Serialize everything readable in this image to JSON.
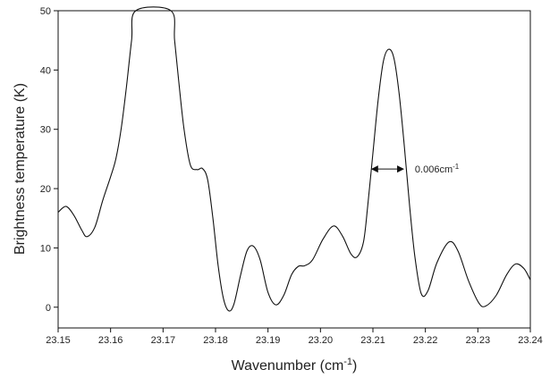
{
  "chart_data": {
    "type": "line",
    "xlabel": "Wavenumber (cm",
    "xlabel_sup": "-1",
    "xlabel_end": ")",
    "ylabel": "Brightness temperature (K)",
    "xlim": [
      23.15,
      23.24
    ],
    "ylim": [
      -3.5,
      50
    ],
    "x_ticks": [
      "23.15",
      "23.16",
      "23.17",
      "23.18",
      "23.19",
      "23.20",
      "23.21",
      "23.22",
      "23.23",
      "23.24"
    ],
    "y_ticks": [
      "0",
      "10",
      "20",
      "30",
      "40",
      "50"
    ],
    "grid": false,
    "series": [
      {
        "color": "#111111",
        "points": [
          [
            23.15,
            16.0
          ],
          [
            23.1515,
            17.0
          ],
          [
            23.153,
            15.5
          ],
          [
            23.1545,
            13.0
          ],
          [
            23.1555,
            11.9
          ],
          [
            23.157,
            13.5
          ],
          [
            23.1585,
            18.0
          ],
          [
            23.16,
            22.0
          ],
          [
            23.161,
            25.0
          ],
          [
            23.162,
            30.0
          ],
          [
            23.163,
            37.0
          ],
          [
            23.164,
            45.0
          ],
          [
            23.1648,
            50.0
          ],
          [
            23.1715,
            50.0
          ],
          [
            23.1722,
            45.0
          ],
          [
            23.173,
            38.0
          ],
          [
            23.174,
            30.0
          ],
          [
            23.1752,
            24.0
          ],
          [
            23.1765,
            23.2
          ],
          [
            23.1775,
            23.4
          ],
          [
            23.1785,
            21.5
          ],
          [
            23.1795,
            15.0
          ],
          [
            23.1805,
            7.0
          ],
          [
            23.1815,
            1.5
          ],
          [
            23.1825,
            -0.6
          ],
          [
            23.1835,
            0.5
          ],
          [
            23.1848,
            5.5
          ],
          [
            23.186,
            9.5
          ],
          [
            23.1872,
            10.3
          ],
          [
            23.1885,
            8.0
          ],
          [
            23.19,
            2.5
          ],
          [
            23.1915,
            0.4
          ],
          [
            23.193,
            2.0
          ],
          [
            23.1945,
            5.5
          ],
          [
            23.1958,
            6.9
          ],
          [
            23.197,
            7.0
          ],
          [
            23.1985,
            8.0
          ],
          [
            23.2005,
            11.5
          ],
          [
            23.2025,
            13.7
          ],
          [
            23.2042,
            12.0
          ],
          [
            23.2058,
            9.0
          ],
          [
            23.207,
            8.5
          ],
          [
            23.2082,
            11.0
          ],
          [
            23.209,
            17.0
          ],
          [
            23.21,
            26.0
          ],
          [
            23.211,
            35.0
          ],
          [
            23.212,
            41.5
          ],
          [
            23.213,
            43.5
          ],
          [
            23.214,
            42.0
          ],
          [
            23.215,
            36.0
          ],
          [
            23.216,
            27.0
          ],
          [
            23.217,
            17.0
          ],
          [
            23.218,
            8.5
          ],
          [
            23.2192,
            2.3
          ],
          [
            23.2205,
            2.8
          ],
          [
            23.2222,
            7.5
          ],
          [
            23.2245,
            11.0
          ],
          [
            23.2262,
            9.5
          ],
          [
            23.2282,
            4.5
          ],
          [
            23.2302,
            0.7
          ],
          [
            23.2315,
            0.2
          ],
          [
            23.2335,
            2.0
          ],
          [
            23.2355,
            5.5
          ],
          [
            23.2372,
            7.3
          ],
          [
            23.2388,
            6.5
          ],
          [
            23.24,
            4.6
          ]
        ]
      }
    ],
    "annotations": [
      {
        "text": "0.006cm",
        "sup": "-1",
        "arrow_from": [
          23.2098,
          23.3
        ],
        "arrow_to": [
          23.2158,
          23.3
        ],
        "text_anchor": [
          23.218,
          23.3
        ]
      }
    ]
  }
}
